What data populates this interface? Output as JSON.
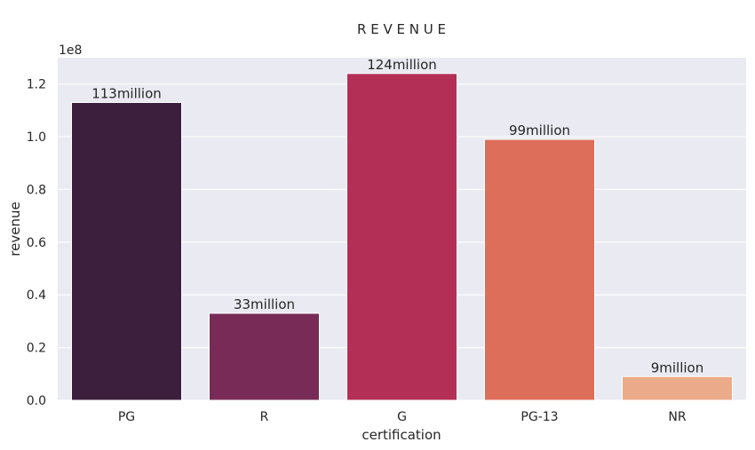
{
  "chart_data": {
    "type": "bar",
    "title": "R E V E N U E",
    "xlabel": "certification",
    "ylabel": "revenue",
    "offset_label": "1e8",
    "categories": [
      "PG",
      "R",
      "G",
      "PG-13",
      "NR"
    ],
    "values": [
      1.13,
      0.33,
      1.24,
      0.99,
      0.09
    ],
    "bar_labels": [
      "113million",
      "33million",
      "124million",
      "99million",
      "9million"
    ],
    "colors": [
      "#3b1f3c",
      "#772b56",
      "#b32f55",
      "#dc6e5a",
      "#ebab8a"
    ],
    "ylim": [
      0,
      1.3
    ],
    "yticks": [
      0.0,
      0.2,
      0.4,
      0.6,
      0.8,
      1.0,
      1.2
    ],
    "ytick_labels": [
      "0.0",
      "0.2",
      "0.4",
      "0.6",
      "0.8",
      "1.0",
      "1.2"
    ],
    "grid": true,
    "background": "#eaeaf2",
    "grid_color": "#ffffff"
  }
}
